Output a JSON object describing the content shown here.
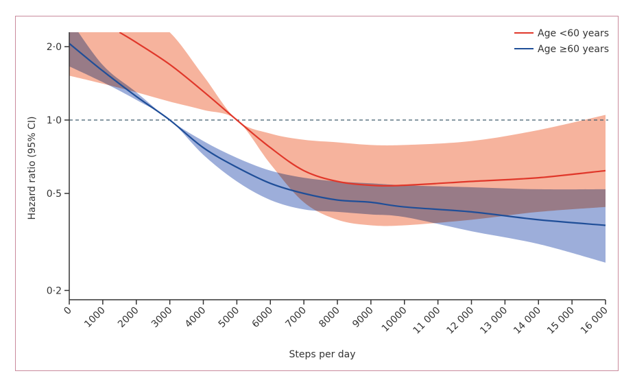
{
  "chart_data": {
    "type": "line",
    "title": "",
    "xlabel": "Steps per day",
    "ylabel": "Hazard ratio (95% CI)",
    "xlim": [
      0,
      16000
    ],
    "ylim": [
      0.18,
      2.29
    ],
    "yscale": "log",
    "xticks": [
      0,
      1000,
      2000,
      3000,
      4000,
      5000,
      6000,
      7000,
      8000,
      9000,
      10000,
      11000,
      12000,
      13000,
      14000,
      15000,
      16000
    ],
    "xtick_labels": [
      "0",
      "1000",
      "2000",
      "3000",
      "4000",
      "5000",
      "6000",
      "7000",
      "8000",
      "9000",
      "10000",
      "11 000",
      "12 000",
      "13 000",
      "14 000",
      "15 000",
      "16 000"
    ],
    "yticks": [
      0.2,
      0.5,
      1.0,
      2.0
    ],
    "ytick_labels": [
      "0·2",
      "0·5",
      "1·0",
      "2·0"
    ],
    "reference_line": {
      "y": 1.0,
      "style": "dashed",
      "color": "#3d5a6c"
    },
    "legend_position": "top-right",
    "grid": false,
    "series": [
      {
        "name": "Age <60 years",
        "color": "#e0372a",
        "band_color": "#f4a084",
        "x": [
          1500,
          2000,
          3000,
          4000,
          5000,
          6000,
          7000,
          8000,
          9000,
          10000,
          12000,
          14000,
          16000
        ],
        "y": [
          2.29,
          2.08,
          1.69,
          1.31,
          1.0,
          0.77,
          0.62,
          0.56,
          0.54,
          0.54,
          0.56,
          0.58,
          0.62
        ],
        "ci_x": [
          0,
          1000,
          2000,
          3000,
          4000,
          5000,
          6000,
          7000,
          8000,
          9000,
          10000,
          12000,
          14000,
          16000
        ],
        "ci_upper": [
          4.0,
          3.4,
          2.8,
          2.29,
          1.52,
          1.0,
          0.88,
          0.83,
          0.81,
          0.79,
          0.79,
          0.82,
          0.91,
          1.05
        ],
        "ci_lower": [
          1.52,
          1.41,
          1.3,
          1.19,
          1.1,
          1.0,
          0.66,
          0.46,
          0.39,
          0.37,
          0.37,
          0.39,
          0.42,
          0.44
        ]
      },
      {
        "name": "Age ≥60 years",
        "color": "#1f4e98",
        "band_color": "#6f88c8",
        "x": [
          0,
          1000,
          2000,
          3000,
          4000,
          5000,
          6000,
          7000,
          8000,
          9000,
          10000,
          12000,
          14000,
          16000
        ],
        "y": [
          2.06,
          1.59,
          1.25,
          1.0,
          0.77,
          0.64,
          0.55,
          0.5,
          0.47,
          0.46,
          0.44,
          0.42,
          0.39,
          0.37
        ],
        "ci_x": [
          0,
          1000,
          2000,
          3000,
          4000,
          5000,
          6000,
          7000,
          8000,
          9000,
          10000,
          12000,
          14000,
          16000
        ],
        "ci_upper": [
          2.6,
          1.68,
          1.3,
          1.0,
          0.82,
          0.7,
          0.62,
          0.58,
          0.56,
          0.55,
          0.54,
          0.53,
          0.52,
          0.52
        ],
        "ci_lower": [
          1.66,
          1.43,
          1.21,
          1.0,
          0.72,
          0.56,
          0.47,
          0.43,
          0.42,
          0.41,
          0.4,
          0.35,
          0.31,
          0.26
        ]
      }
    ]
  }
}
